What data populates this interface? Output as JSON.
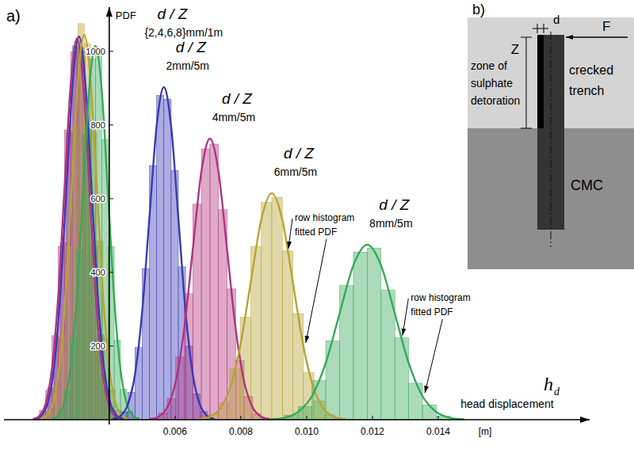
{
  "chart_data": {
    "type": "histogram",
    "panel_label": "a)",
    "ylabel": "PDF",
    "xlabel": "head displacement",
    "xlabel_symbol": "h",
    "xlabel_subscript": "d",
    "xunit": "[m]",
    "ratio_label": "d / Z",
    "group_label": "{2,4,6,8}mm/1m",
    "xlim": [
      0.0008,
      0.0186
    ],
    "ylim": [
      0,
      1120
    ],
    "y_axis_at": 0.004,
    "xticks": [
      0.006,
      0.008,
      {
        "value": 0.01,
        "label": "0.010"
      },
      0.012,
      0.014
    ],
    "yticks": [
      200,
      400,
      600,
      800,
      1000
    ],
    "grid": false,
    "series": [
      {
        "color": "#3a3ab5",
        "bins": [
          0.00175,
          0.00194,
          0.00213,
          0.00232,
          0.00251,
          0.0027,
          0.00289,
          0.00308,
          0.00327,
          0.00346,
          0.00365,
          0.00384,
          0.00403,
          0.00422,
          0.00441
        ],
        "counts": [
          5,
          22,
          86,
          220,
          480,
          779,
          1015,
          1000,
          790,
          470,
          230,
          80,
          25,
          5
        ],
        "fit_values": [
          2,
          12,
          46,
          141,
          338,
          631,
          918,
          1040,
          918,
          631,
          338,
          141,
          46,
          12,
          2
        ]
      },
      {
        "color": "#b0347c",
        "bins": [
          0.00169,
          0.00188,
          0.00207,
          0.00226,
          0.00245,
          0.00264,
          0.00283,
          0.00302,
          0.00321,
          0.0034,
          0.00359,
          0.00378,
          0.00397,
          0.00416,
          0.00435
        ],
        "counts": [
          4,
          25,
          80,
          228,
          470,
          786,
          998,
          1010,
          776,
          478,
          220,
          85,
          23,
          5
        ],
        "fit_values": [
          2,
          11,
          45,
          140,
          336,
          628,
          913,
          1035,
          913,
          628,
          336,
          140,
          45,
          11,
          2
        ]
      },
      {
        "color": "#b8a334",
        "bins": [
          0.00191,
          0.0021,
          0.00229,
          0.00248,
          0.00267,
          0.00286,
          0.00305,
          0.00324,
          0.00343,
          0.00362,
          0.00381,
          0.004,
          0.00419,
          0.00438,
          0.00457
        ],
        "counts": [
          6,
          23,
          88,
          230,
          470,
          800,
          1075,
          1020,
          780,
          485,
          220,
          82,
          26,
          4
        ],
        "fit_values": [
          2,
          12,
          46,
          141,
          339,
          634,
          922,
          1045,
          922,
          634,
          339,
          141,
          46,
          12,
          2
        ]
      },
      {
        "color": "#36a958",
        "bins": [
          0.00225,
          0.00244,
          0.00263,
          0.00282,
          0.00301,
          0.0032,
          0.00339,
          0.00358,
          0.00377,
          0.00396,
          0.00415,
          0.00434,
          0.00453,
          0.00472,
          0.00491
        ],
        "counts": [
          5,
          24,
          78,
          222,
          460,
          772,
          980,
          990,
          760,
          470,
          215,
          83,
          22,
          5
        ],
        "fit_values": [
          2,
          11,
          45,
          137,
          330,
          616,
          896,
          1015,
          896,
          616,
          330,
          137,
          45,
          11,
          2
        ]
      },
      {
        "label": "2mm/5m",
        "color": "#3a3ab5",
        "bins": [
          0.00412,
          0.00434,
          0.00456,
          0.00478,
          0.005,
          0.00522,
          0.00544,
          0.00566,
          0.00588,
          0.0061,
          0.00632,
          0.00654,
          0.00676,
          0.00698,
          0.0072
        ],
        "counts": [
          5,
          21,
          74,
          196,
          410,
          690,
          880,
          870,
          676,
          415,
          200,
          70,
          22,
          4
        ],
        "fit_values": [
          2,
          10,
          40,
          122,
          293,
          548,
          797,
          903,
          797,
          548,
          293,
          122,
          40,
          10,
          2
        ]
      },
      {
        "label": "4mm/5m",
        "color": "#b0347c",
        "bins": [
          0.00524,
          0.0055,
          0.00576,
          0.00602,
          0.00628,
          0.00654,
          0.0068,
          0.00706,
          0.00732,
          0.00758,
          0.00784,
          0.0081,
          0.00836,
          0.00862,
          0.00888
        ],
        "counts": [
          4,
          18,
          58,
          170,
          342,
          585,
          735,
          748,
          570,
          355,
          160,
          63,
          16,
          3
        ],
        "fit_values": [
          2,
          8,
          33,
          103,
          248,
          463,
          673,
          763,
          673,
          463,
          248,
          103,
          33,
          8,
          2
        ]
      },
      {
        "label": "6mm/5m",
        "color": "#b8a334",
        "callout": [
          "row histogram",
          "fitted PDF"
        ],
        "bins": [
          0.0067,
          0.00702,
          0.00734,
          0.00766,
          0.00798,
          0.0083,
          0.00862,
          0.00894,
          0.00926,
          0.00958,
          0.0099,
          0.01022,
          0.01054,
          0.01086,
          0.01118
        ],
        "counts": [
          3,
          15,
          47,
          138,
          278,
          470,
          590,
          604,
          458,
          288,
          128,
          51,
          13,
          4
        ],
        "fit_values": [
          1,
          7,
          27,
          83,
          200,
          373,
          543,
          615,
          543,
          373,
          200,
          83,
          27,
          7,
          1
        ]
      },
      {
        "label": "8mm/5m",
        "color": "#36a958",
        "callout": [
          "row histogram",
          "fitted PDF"
        ],
        "bins": [
          0.0089,
          0.00932,
          0.00974,
          0.01016,
          0.01058,
          0.011,
          0.01142,
          0.01184,
          0.01226,
          0.01268,
          0.0131,
          0.01352,
          0.01394,
          0.01436,
          0.01478
        ],
        "counts": [
          2,
          12,
          36,
          106,
          214,
          364,
          455,
          466,
          352,
          222,
          99,
          40,
          10,
          3
        ],
        "fit_values": [
          1,
          5,
          21,
          64,
          154,
          288,
          419,
          475,
          419,
          288,
          154,
          64,
          21,
          5,
          1
        ]
      }
    ]
  },
  "diagram": {
    "panel_label": "b)",
    "d": "d",
    "F": "F",
    "Z": "Z",
    "zone": [
      "zone of",
      "sulphate",
      "detoration"
    ],
    "trench": [
      "crecked",
      "trench"
    ],
    "soil": "CMC"
  }
}
